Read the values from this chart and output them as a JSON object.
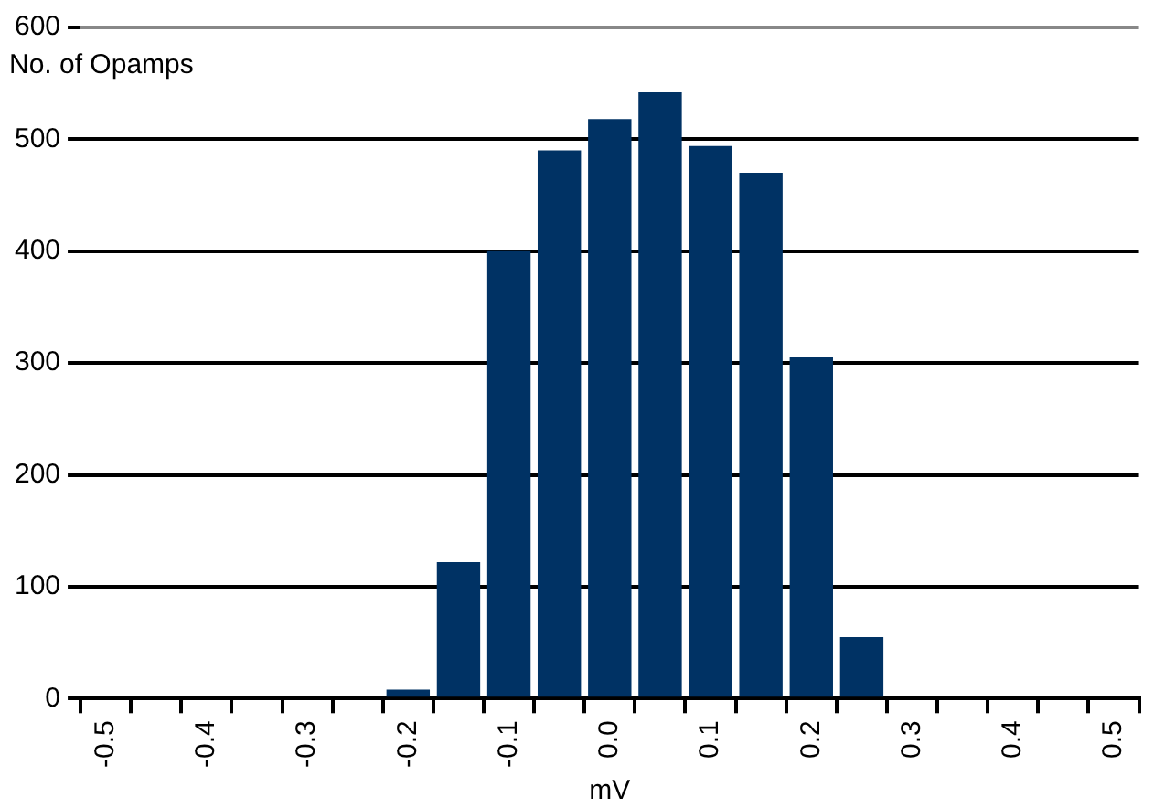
{
  "chart_data": {
    "type": "bar",
    "ylabel": "No. of Opamps",
    "xlabel": "mV",
    "categories": [
      "-0.5",
      null,
      "-0.4",
      null,
      "-0.3",
      null,
      "-0.2",
      null,
      "-0.1",
      null,
      "0.0",
      null,
      "0.1",
      null,
      "0.2",
      null,
      "0.3",
      null,
      "0.4",
      null,
      "0.5"
    ],
    "values": [
      0,
      0,
      0,
      0,
      0,
      0,
      8,
      122,
      400,
      490,
      518,
      542,
      494,
      470,
      305,
      55,
      0,
      0,
      0,
      0,
      0
    ],
    "color": "#003264",
    "ylim": [
      0,
      600
    ],
    "yticks": [
      0,
      100,
      200,
      300,
      400,
      500,
      600
    ],
    "grid": "y",
    "legend": false
  }
}
